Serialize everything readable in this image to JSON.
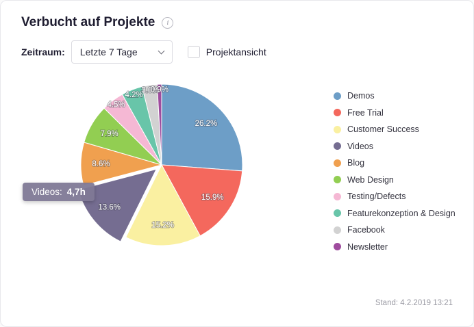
{
  "header": {
    "title": "Verbucht auf Projekte",
    "info_glyph": "i"
  },
  "controls": {
    "zeitraum_label": "Zeitraum:",
    "zeitraum_selected": "Letzte 7 Tage",
    "projektansicht_label": "Projektansicht",
    "projektansicht_checked": false
  },
  "chart_data": {
    "type": "pie",
    "title": "Verbucht auf Projekte",
    "legend_position": "right",
    "start_angle_deg": 0,
    "direction": "clockwise",
    "percent_label_color": "#ffffff",
    "slices": [
      {
        "label": "Demos",
        "percent": 26.2,
        "color": "#6d9ec7"
      },
      {
        "label": "Free Trial",
        "percent": 15.9,
        "color": "#f4685d"
      },
      {
        "label": "Customer Success",
        "percent": 15.2,
        "color": "#faf0a1"
      },
      {
        "label": "Videos",
        "percent": 13.6,
        "color": "#756d91",
        "hovered": true,
        "hours": "4,7h"
      },
      {
        "label": "Blog",
        "percent": 8.6,
        "color": "#f0a04f"
      },
      {
        "label": "Web Design",
        "percent": 7.9,
        "color": "#92ce52"
      },
      {
        "label": "Testing/Defects",
        "percent": 4.5,
        "color": "#f5b8d4"
      },
      {
        "label": "Featurekonzeption & Design",
        "percent": 4.2,
        "color": "#68c5a9"
      },
      {
        "label": "Facebook",
        "percent": 3.0,
        "color": "#d2d2d2"
      },
      {
        "label": "Newsletter",
        "percent": 0.9,
        "color": "#9f4c9e"
      }
    ]
  },
  "tooltip": {
    "label": "Videos:",
    "value": "4,7h"
  },
  "footer": {
    "stand": "Stand: 4.2.2019 13:21"
  }
}
